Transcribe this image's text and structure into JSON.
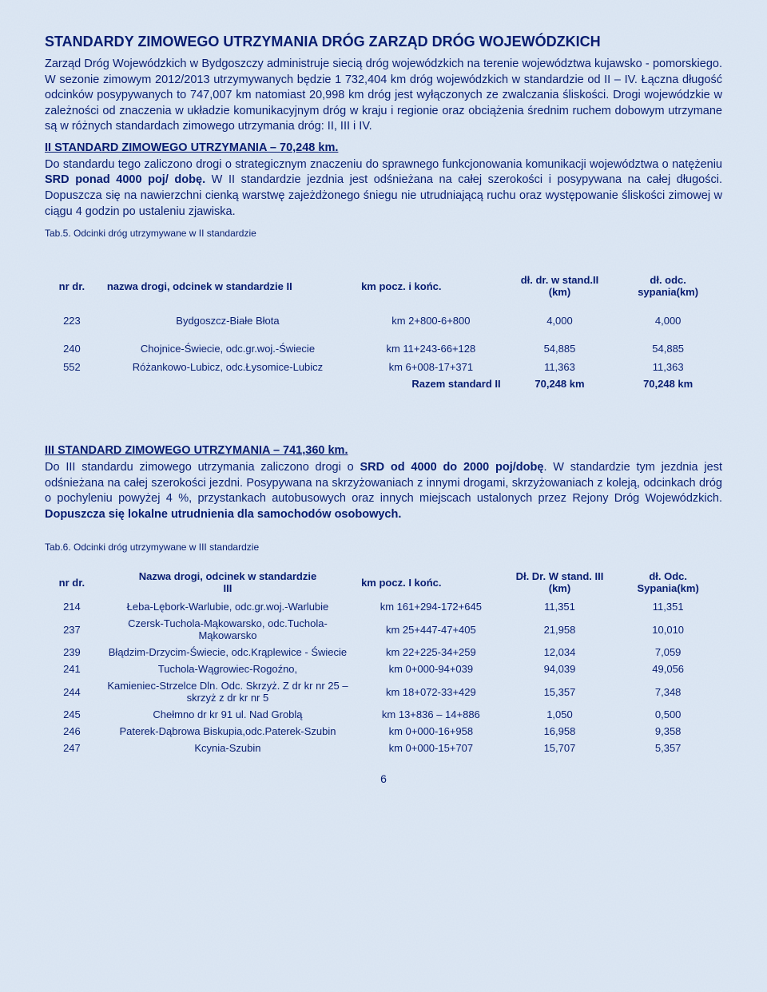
{
  "title": "STANDARDY ZIMOWEGO UTRZYMANIA DRÓG ZARZĄD DRÓG WOJEWÓDZKICH",
  "para1": "Zarząd Dróg Wojewódzkich w Bydgoszczy administruje siecią dróg wojewódzkich na terenie województwa kujawsko - pomorskiego. W sezonie zimowym 2012/2013 utrzymywanych będzie 1 732,404 km dróg wojewódzkich w standardzie od II – IV. Łączna długość odcinków posypywanych to 747,007 km natomiast 20,998 km dróg jest wyłączonych ze zwalczania śliskości. Drogi wojewódzkie w zależności od znaczenia w układzie komunikacyjnym dróg w kraju  i regionie oraz  obciążenia średnim ruchem dobowym utrzymane są w różnych standardach zimowego utrzymania dróg: II, III i IV.",
  "sub1": "II STANDARD ZIMOWEGO UTRZYMANIA – 70,248 km.",
  "para2a": "Do standardu tego zaliczono drogi o strategicznym znaczeniu do sprawnego funkcjonowania komunikacji województwa o natężeniu ",
  "para2b": "SRD ponad 4000 poj/ dobę.",
  "para2c": " W II standardzie jezdnia jest odśnieżana na całej szerokości i posypywana na całej długości. Dopuszcza się na nawierzchni cienką warstwę zajeżdżonego śniegu nie utrudniającą ruchu oraz występowanie śliskości zimowej w ciągu 4 godzin po ustaleniu zjawiska.",
  "tabcap1": "Tab.5. Odcinki dróg utrzymywane w II standardzie",
  "t1": {
    "h_nr": "nr dr.",
    "h_name": "nazwa drogi, odcinek w standardzie II",
    "h_km": "km pocz. i końc.",
    "h_dl1a": "dł. dr. w stand.II",
    "h_dl1b": "(km)",
    "h_dl2a": "dł. odc.",
    "h_dl2b": "sypania(km)",
    "rows": [
      {
        "nr": "223",
        "name": "Bydgoszcz-Białe Błota",
        "km": "km 2+800-6+800",
        "d1": "4,000",
        "d2": "4,000"
      },
      {
        "nr": "240",
        "name": "Chojnice-Świecie, odc.gr.woj.-Świecie",
        "km": "km 11+243-66+128",
        "d1": "54,885",
        "d2": "54,885"
      },
      {
        "nr": "552",
        "name": "Różankowo-Lubicz, odc.Łysomice-Lubicz",
        "km": "km 6+008-17+371",
        "d1": "11,363",
        "d2": "11,363"
      }
    ],
    "razem_label": "Razem standard II",
    "razem_d1": "70,248 km",
    "razem_d2": "70,248 km"
  },
  "sub2": "III STANDARD ZIMOWEGO UTRZYMANIA – 741,360  km.",
  "para3a": "Do III standardu zimowego utrzymania zaliczono drogi o ",
  "para3b": "SRD od 4000 do  2000 poj/dobę",
  "para3c": ". W standardzie tym jezdnia jest odśnieżana na całej szerokości jezdni. Posypywana na skrzyżowaniach z innymi drogami, skrzyżowaniach z koleją, odcinkach dróg o pochyleniu powyżej 4 %, przystankach autobusowych oraz innych miejscach ustalonych przez Rejony Dróg Wojewódzkich. ",
  "para3d": "Dopuszcza się lokalne utrudnienia dla samochodów osobowych.",
  "tabcap2": "Tab.6. Odcinki dróg utrzymywane w III standardzie",
  "t2": {
    "h_nr": "nr dr.",
    "h_name_a": "Nazwa drogi, odcinek w standardzie",
    "h_name_b": "III",
    "h_km": "km pocz. I końc.",
    "h_dl1a": "Dł. Dr. W stand. III",
    "h_dl1b": "(km)",
    "h_dl2a": "dł. Odc.",
    "h_dl2b": "Sypania(km)",
    "rows": [
      {
        "nr": "214",
        "name": "Łeba-Lębork-Warlubie, odc.gr.woj.-Warlubie",
        "km": "km 161+294-172+645",
        "d1": "11,351",
        "d2": "11,351"
      },
      {
        "nr": "237",
        "name": "Czersk-Tuchola-Mąkowarsko, odc.Tuchola-Mąkowarsko",
        "km": "km 25+447-47+405",
        "d1": "21,958",
        "d2": "10,010"
      },
      {
        "nr": "239",
        "name": "Błądzim-Drzycim-Świecie, odc.Krąplewice - Świecie",
        "km": "km 22+225-34+259",
        "d1": "12,034",
        "d2": "7,059"
      },
      {
        "nr": "241",
        "name": "Tuchola-Wągrowiec-Rogoźno,",
        "km": "km 0+000-94+039",
        "d1": "94,039",
        "d2": "49,056"
      },
      {
        "nr": "244",
        "name": "Kamieniec-Strzelce Dln. Odc. Skrzyż. Z dr kr nr 25 – skrzyż z dr kr nr 5",
        "km": "km 18+072-33+429",
        "d1": "15,357",
        "d2": "7,348"
      },
      {
        "nr": "245",
        "name": "Chełmno dr kr 91 ul. Nad Groblą",
        "km": "km 13+836 – 14+886",
        "d1": "1,050",
        "d2": "0,500"
      },
      {
        "nr": "246",
        "name": "Paterek-Dąbrowa Biskupia,odc.Paterek-Szubin",
        "km": "km 0+000-16+958",
        "d1": "16,958",
        "d2": "9,358"
      },
      {
        "nr": "247",
        "name": "Kcynia-Szubin",
        "km": "km 0+000-15+707",
        "d1": "15,707",
        "d2": "5,357"
      }
    ]
  },
  "page_num": "6"
}
